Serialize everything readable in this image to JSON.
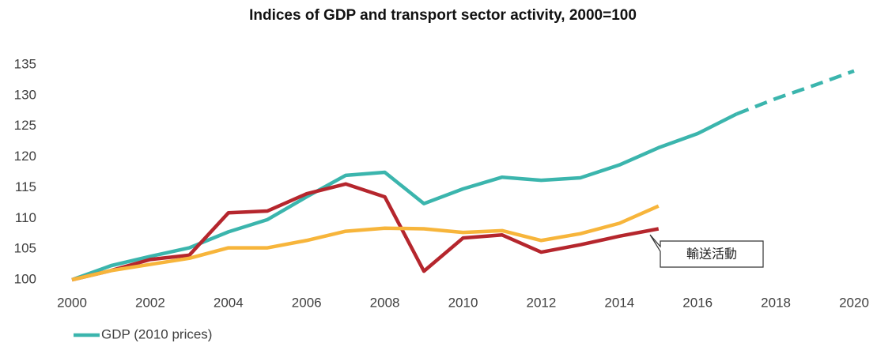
{
  "chart_data": {
    "type": "line",
    "title": "Indices of GDP and transport sector activity, 2000=100",
    "x": [
      2000,
      2001,
      2002,
      2003,
      2004,
      2005,
      2006,
      2007,
      2008,
      2009,
      2010,
      2011,
      2012,
      2013,
      2014,
      2015,
      2016,
      2017,
      2018,
      2019,
      2020
    ],
    "series": [
      {
        "name": "GDP (2010 prices)",
        "color": "#3bb5ad",
        "dashed_from": 2017,
        "values": [
          100,
          102.3,
          103.8,
          105.2,
          107.8,
          109.8,
          113.5,
          117,
          117.5,
          112.4,
          114.8,
          116.7,
          116.2,
          116.6,
          118.7,
          121.5,
          123.8,
          127,
          129.5,
          131.7,
          134
        ]
      },
      {
        "color": "#b5262d",
        "values": [
          100,
          101.5,
          103.3,
          104,
          110.9,
          111.2,
          114,
          115.6,
          113.5,
          101.4,
          106.8,
          107.3,
          104.5,
          105.7,
          107.1,
          108.3,
          null,
          null,
          null,
          null,
          null
        ]
      },
      {
        "color": "#f7b53b",
        "values": [
          100,
          101.5,
          102.5,
          103.5,
          105.2,
          105.2,
          106.4,
          107.9,
          108.4,
          108.3,
          107.7,
          108,
          106.4,
          107.5,
          109.2,
          112,
          null,
          null,
          null,
          null,
          null
        ]
      }
    ],
    "annotation": "輸送活動",
    "xlim": [
      2000,
      2020
    ],
    "xticks": [
      2000,
      2002,
      2004,
      2006,
      2008,
      2010,
      2012,
      2014,
      2016,
      2018,
      2020
    ],
    "ylim": [
      100,
      135
    ],
    "yticks": [
      100,
      105,
      110,
      115,
      120,
      125,
      130,
      135
    ],
    "grid": false
  }
}
